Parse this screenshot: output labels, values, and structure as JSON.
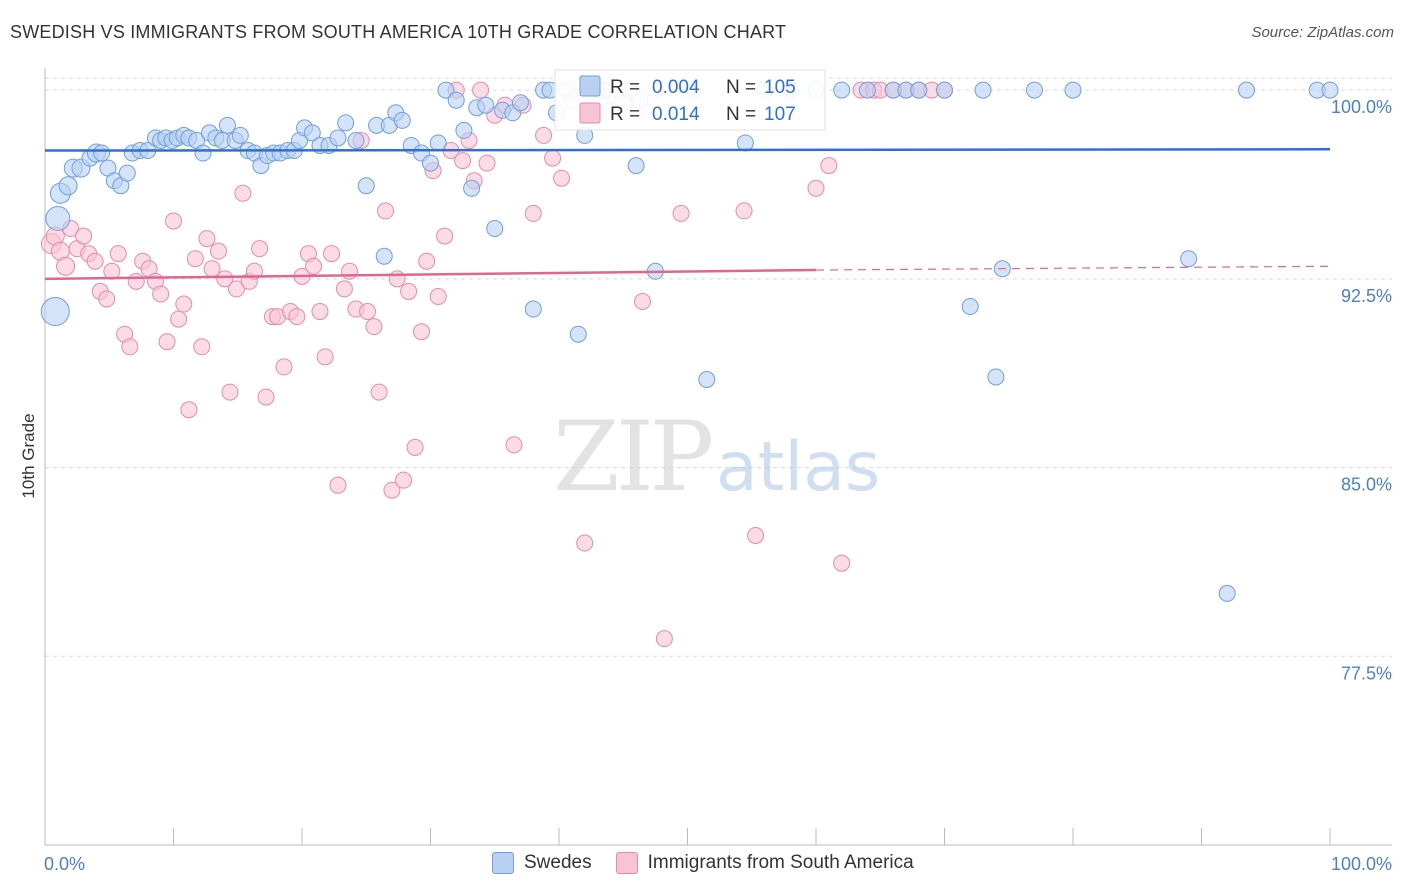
{
  "header": {
    "title": "SWEDISH VS IMMIGRANTS FROM SOUTH AMERICA 10TH GRADE CORRELATION CHART",
    "source": "Source: ZipAtlas.com"
  },
  "watermark": {
    "zip": "ZIP",
    "atlas": "atlas"
  },
  "colors": {
    "blue": "#6f9fdd",
    "blue_fill": "#b8d0f2",
    "blue_line": "#2e6fd6",
    "pink": "#e88aa8",
    "pink_fill": "#f8c4d5",
    "pink_line": "#e0668f",
    "axis_label": "#4a7fd0",
    "grid": "#d8d8d8"
  },
  "legend_stats": {
    "r_label": "R =",
    "n_label": "N =",
    "swedes_r": "0.004",
    "swedes_n": "105",
    "immigrants_r": "0.014",
    "immigrants_n": "107"
  },
  "chart_data": {
    "type": "scatter",
    "title": "SWEDISH VS IMMIGRANTS FROM SOUTH AMERICA 10TH GRADE CORRELATION CHART",
    "xlabel": "",
    "ylabel": "10th Grade",
    "xlim": [
      0,
      100
    ],
    "ylim": [
      70,
      100.8
    ],
    "x_tick_labels": [
      "0.0%",
      "100.0%"
    ],
    "y_ticks": [
      77.5,
      85.0,
      92.5,
      100.0
    ],
    "y_tick_labels": [
      "77.5%",
      "85.0%",
      "92.5%",
      "100.0%"
    ],
    "grid": true,
    "legend_position": "top-center",
    "series": [
      {
        "name": "Swedes",
        "trend": {
          "x": [
            0,
            100
          ],
          "y": [
            97.6,
            97.65
          ]
        },
        "points": [
          [
            0.8,
            91.2,
            14
          ],
          [
            1.0,
            94.9,
            12
          ],
          [
            1.2,
            95.9,
            10
          ],
          [
            1.8,
            96.2,
            9
          ],
          [
            2.2,
            96.9,
            9
          ],
          [
            2.8,
            96.9,
            9
          ],
          [
            3.5,
            97.3,
            8
          ],
          [
            4.0,
            97.5,
            9
          ],
          [
            4.4,
            97.5,
            8
          ],
          [
            4.9,
            96.9,
            8
          ],
          [
            5.4,
            96.4,
            8
          ],
          [
            5.9,
            96.2,
            8
          ],
          [
            6.4,
            96.7,
            8
          ],
          [
            6.8,
            97.5,
            8
          ],
          [
            7.4,
            97.6,
            8
          ],
          [
            8.0,
            97.6,
            8
          ],
          [
            8.6,
            98.1,
            8
          ],
          [
            9.0,
            98.0,
            8
          ],
          [
            9.4,
            98.1,
            8
          ],
          [
            9.9,
            98.0,
            8
          ],
          [
            10.3,
            98.1,
            8
          ],
          [
            10.8,
            98.2,
            8
          ],
          [
            11.2,
            98.1,
            8
          ],
          [
            11.8,
            98.0,
            8
          ],
          [
            12.3,
            97.5,
            8
          ],
          [
            12.8,
            98.3,
            8
          ],
          [
            13.3,
            98.1,
            8
          ],
          [
            13.8,
            98.0,
            8
          ],
          [
            14.2,
            98.6,
            8
          ],
          [
            14.8,
            98.0,
            8
          ],
          [
            15.2,
            98.2,
            8
          ],
          [
            15.8,
            97.6,
            8
          ],
          [
            16.3,
            97.5,
            8
          ],
          [
            16.8,
            97.0,
            8
          ],
          [
            17.3,
            97.4,
            8
          ],
          [
            17.8,
            97.5,
            8
          ],
          [
            18.3,
            97.5,
            8
          ],
          [
            18.9,
            97.6,
            8
          ],
          [
            19.4,
            97.6,
            8
          ],
          [
            19.8,
            98.0,
            8
          ],
          [
            20.2,
            98.5,
            8
          ],
          [
            20.8,
            98.3,
            8
          ],
          [
            21.4,
            97.8,
            8
          ],
          [
            22.1,
            97.8,
            8
          ],
          [
            22.8,
            98.1,
            8
          ],
          [
            23.4,
            98.7,
            8
          ],
          [
            24.2,
            98.0,
            8
          ],
          [
            25.0,
            96.2,
            8
          ],
          [
            25.8,
            98.6,
            8
          ],
          [
            26.4,
            93.4,
            8
          ],
          [
            26.8,
            98.6,
            8
          ],
          [
            27.3,
            99.1,
            8
          ],
          [
            27.8,
            98.8,
            8
          ],
          [
            28.5,
            97.8,
            8
          ],
          [
            29.3,
            97.5,
            8
          ],
          [
            30.0,
            97.1,
            8
          ],
          [
            30.6,
            97.9,
            8
          ],
          [
            31.2,
            100.0,
            8
          ],
          [
            32.0,
            99.6,
            8
          ],
          [
            32.6,
            98.4,
            8
          ],
          [
            33.2,
            96.1,
            8
          ],
          [
            33.6,
            99.3,
            8
          ],
          [
            34.3,
            99.4,
            8
          ],
          [
            35.0,
            94.5,
            8
          ],
          [
            35.6,
            99.2,
            8
          ],
          [
            36.4,
            99.1,
            8
          ],
          [
            37.0,
            99.5,
            8
          ],
          [
            38.0,
            91.3,
            8
          ],
          [
            38.8,
            100.0,
            8
          ],
          [
            39.3,
            100.0,
            8
          ],
          [
            39.8,
            99.1,
            8
          ],
          [
            40.6,
            100.0,
            8
          ],
          [
            41.5,
            90.3,
            8
          ],
          [
            42.0,
            98.2,
            8
          ],
          [
            43.0,
            100.0,
            8
          ],
          [
            43.6,
            100.0,
            8
          ],
          [
            44.0,
            99.2,
            8
          ],
          [
            45.5,
            100.0,
            8
          ],
          [
            46.0,
            97.0,
            8
          ],
          [
            46.3,
            99.6,
            8
          ],
          [
            47.5,
            92.8,
            8
          ],
          [
            50.0,
            100.0,
            8
          ],
          [
            51.5,
            88.5,
            8
          ],
          [
            54.5,
            97.9,
            8
          ],
          [
            56.0,
            100.0,
            8
          ],
          [
            58.0,
            100.0,
            8
          ],
          [
            60.0,
            100.0,
            8
          ],
          [
            62.0,
            100.0,
            8
          ],
          [
            64.0,
            100.0,
            8
          ],
          [
            66.0,
            100.0,
            8
          ],
          [
            67.0,
            100.0,
            8
          ],
          [
            68.0,
            100.0,
            8
          ],
          [
            70.0,
            100.0,
            8
          ],
          [
            72.0,
            91.4,
            8
          ],
          [
            73.0,
            100.0,
            8
          ],
          [
            74.0,
            88.6,
            8
          ],
          [
            74.5,
            92.9,
            8
          ],
          [
            77.0,
            100.0,
            8
          ],
          [
            80.0,
            100.0,
            8
          ],
          [
            89.0,
            93.3,
            8
          ],
          [
            92.0,
            80.0,
            8
          ],
          [
            93.5,
            100.0,
            8
          ],
          [
            99.0,
            100.0,
            8
          ],
          [
            100.0,
            100.0,
            8
          ]
        ]
      },
      {
        "name": "Immigrants from South America",
        "trend": {
          "x": [
            0,
            60
          ],
          "y": [
            92.5,
            92.85
          ]
        },
        "trend_extension": {
          "x": [
            60,
            100
          ],
          "y": [
            92.85,
            93.0
          ]
        },
        "points": [
          [
            0.5,
            93.9,
            10
          ],
          [
            0.8,
            94.2,
            9
          ],
          [
            1.2,
            93.6,
            9
          ],
          [
            1.6,
            93.0,
            9
          ],
          [
            2.0,
            94.5,
            8
          ],
          [
            2.5,
            93.7,
            8
          ],
          [
            3.0,
            94.2,
            8
          ],
          [
            3.4,
            93.5,
            8
          ],
          [
            3.9,
            93.2,
            8
          ],
          [
            4.3,
            92.0,
            8
          ],
          [
            4.8,
            91.7,
            8
          ],
          [
            5.2,
            92.8,
            8
          ],
          [
            5.7,
            93.5,
            8
          ],
          [
            6.2,
            90.3,
            8
          ],
          [
            6.6,
            89.8,
            8
          ],
          [
            7.1,
            92.4,
            8
          ],
          [
            7.6,
            93.2,
            8
          ],
          [
            8.1,
            92.9,
            8
          ],
          [
            8.6,
            92.4,
            8
          ],
          [
            9.0,
            91.9,
            8
          ],
          [
            9.5,
            90.0,
            8
          ],
          [
            10.0,
            94.8,
            8
          ],
          [
            10.4,
            90.9,
            8
          ],
          [
            10.8,
            91.5,
            8
          ],
          [
            11.2,
            87.3,
            8
          ],
          [
            11.7,
            93.3,
            8
          ],
          [
            12.2,
            89.8,
            8
          ],
          [
            12.6,
            94.1,
            8
          ],
          [
            13.0,
            92.9,
            8
          ],
          [
            13.5,
            93.6,
            8
          ],
          [
            14.0,
            92.5,
            8
          ],
          [
            14.4,
            88.0,
            8
          ],
          [
            14.9,
            92.1,
            8
          ],
          [
            15.4,
            95.9,
            8
          ],
          [
            15.9,
            92.4,
            8
          ],
          [
            16.3,
            92.8,
            8
          ],
          [
            16.7,
            93.7,
            8
          ],
          [
            17.2,
            87.8,
            8
          ],
          [
            17.7,
            91.0,
            8
          ],
          [
            18.1,
            91.0,
            8
          ],
          [
            18.6,
            89.0,
            8
          ],
          [
            19.1,
            91.2,
            8
          ],
          [
            19.6,
            91.0,
            8
          ],
          [
            20.0,
            92.6,
            8
          ],
          [
            20.5,
            93.5,
            8
          ],
          [
            20.9,
            93.0,
            8
          ],
          [
            21.4,
            91.2,
            8
          ],
          [
            21.8,
            89.4,
            8
          ],
          [
            22.3,
            93.5,
            8
          ],
          [
            22.8,
            84.3,
            8
          ],
          [
            23.3,
            92.1,
            8
          ],
          [
            23.7,
            92.8,
            8
          ],
          [
            24.2,
            91.3,
            8
          ],
          [
            24.6,
            98.0,
            8
          ],
          [
            25.1,
            91.2,
            8
          ],
          [
            25.6,
            90.6,
            8
          ],
          [
            26.0,
            88.0,
            8
          ],
          [
            26.5,
            95.2,
            8
          ],
          [
            27.0,
            84.1,
            8
          ],
          [
            27.4,
            92.5,
            8
          ],
          [
            27.9,
            84.5,
            8
          ],
          [
            28.3,
            92.0,
            8
          ],
          [
            28.8,
            85.8,
            8
          ],
          [
            29.3,
            90.4,
            8
          ],
          [
            29.7,
            93.2,
            8
          ],
          [
            30.2,
            96.8,
            8
          ],
          [
            30.6,
            91.8,
            8
          ],
          [
            31.1,
            94.2,
            8
          ],
          [
            31.6,
            97.6,
            8
          ],
          [
            32.0,
            100.0,
            8
          ],
          [
            32.5,
            97.2,
            8
          ],
          [
            33.0,
            98.0,
            8
          ],
          [
            33.4,
            96.4,
            8
          ],
          [
            33.9,
            100.0,
            8
          ],
          [
            34.4,
            97.1,
            8
          ],
          [
            35.0,
            99.0,
            8
          ],
          [
            35.8,
            99.4,
            8
          ],
          [
            36.5,
            85.9,
            8
          ],
          [
            37.2,
            99.4,
            8
          ],
          [
            38.0,
            95.1,
            8
          ],
          [
            38.8,
            98.2,
            8
          ],
          [
            39.5,
            97.3,
            8
          ],
          [
            40.2,
            96.5,
            8
          ],
          [
            41.0,
            99.6,
            8
          ],
          [
            42.0,
            82.0,
            8
          ],
          [
            43.5,
            100.0,
            8
          ],
          [
            44.5,
            100.0,
            8
          ],
          [
            45.0,
            99.6,
            8
          ],
          [
            46.5,
            91.6,
            8
          ],
          [
            47.5,
            100.0,
            8
          ],
          [
            48.2,
            78.2,
            8
          ],
          [
            49.5,
            95.1,
            8
          ],
          [
            50.6,
            100.0,
            8
          ],
          [
            54.4,
            95.2,
            8
          ],
          [
            55.3,
            82.3,
            8
          ],
          [
            58.0,
            100.0,
            8
          ],
          [
            60.0,
            96.1,
            8
          ],
          [
            61.0,
            97.0,
            8
          ],
          [
            62.0,
            81.2,
            8
          ],
          [
            63.5,
            100.0,
            8
          ],
          [
            64.5,
            100.0,
            8
          ],
          [
            65.0,
            100.0,
            8
          ],
          [
            66.0,
            100.0,
            8
          ],
          [
            67.0,
            100.0,
            8
          ],
          [
            68.0,
            100.0,
            8
          ],
          [
            69.0,
            100.0,
            8
          ],
          [
            70.0,
            100.0,
            8
          ]
        ]
      }
    ]
  },
  "legend_bottom": {
    "swedes": "Swedes",
    "immigrants": "Immigrants from South America"
  }
}
